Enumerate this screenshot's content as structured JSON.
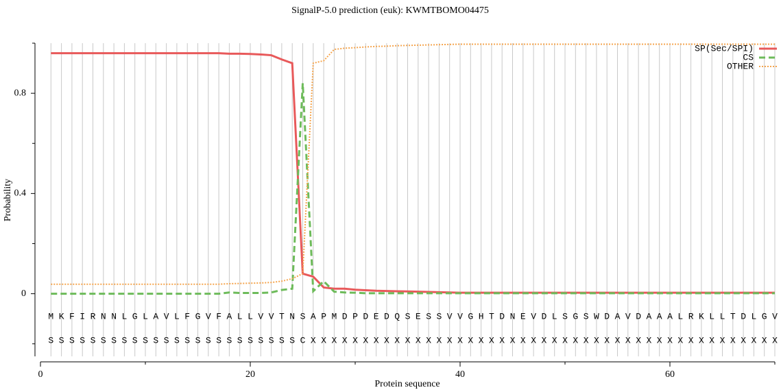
{
  "chart_data": {
    "type": "line",
    "title": "SignalP-5.0 prediction (euk):  KWMTBOMO04475",
    "xlabel": "Protein sequence",
    "ylabel": "Probability",
    "x": [
      1,
      2,
      3,
      4,
      5,
      6,
      7,
      8,
      9,
      10,
      11,
      12,
      13,
      14,
      15,
      16,
      17,
      18,
      19,
      20,
      21,
      22,
      23,
      24,
      25,
      26,
      27,
      28,
      29,
      30,
      31,
      32,
      33,
      34,
      35,
      36,
      37,
      38,
      39,
      40,
      41,
      42,
      43,
      44,
      45,
      46,
      47,
      48,
      49,
      50,
      51,
      52,
      53,
      54,
      55,
      56,
      57,
      58,
      59,
      60,
      61,
      62,
      63,
      64,
      65,
      66,
      67,
      68,
      69,
      70
    ],
    "xlim": [
      0,
      70
    ],
    "xticks": [
      0,
      20,
      40,
      60
    ],
    "xminor": [
      10,
      30,
      50,
      70
    ],
    "ylim": [
      -0.25,
      1.0
    ],
    "yticks": [
      0,
      0.4,
      0.8
    ],
    "yminor": [
      -0.2,
      0.2,
      0.6,
      1.0
    ],
    "grid": true,
    "legend": "upper right",
    "series": [
      {
        "name": "SP(Sec/SPI)",
        "color": "#e8595a",
        "dash": "solid",
        "values": [
          0.96,
          0.96,
          0.96,
          0.96,
          0.96,
          0.96,
          0.96,
          0.96,
          0.96,
          0.96,
          0.96,
          0.96,
          0.96,
          0.96,
          0.96,
          0.96,
          0.96,
          0.958,
          0.958,
          0.957,
          0.955,
          0.952,
          0.935,
          0.92,
          0.08,
          0.068,
          0.025,
          0.02,
          0.02,
          0.016,
          0.014,
          0.012,
          0.011,
          0.01,
          0.009,
          0.008,
          0.007,
          0.006,
          0.005,
          0.004,
          0.004,
          0.004,
          0.004,
          0.004,
          0.004,
          0.004,
          0.004,
          0.004,
          0.004,
          0.004,
          0.004,
          0.004,
          0.004,
          0.004,
          0.004,
          0.004,
          0.004,
          0.004,
          0.004,
          0.004,
          0.004,
          0.004,
          0.004,
          0.004,
          0.004,
          0.004,
          0.004,
          0.004,
          0.004,
          0.004
        ]
      },
      {
        "name": "CS",
        "color": "#6dbb5a",
        "dash": "dashed",
        "values": [
          0,
          0,
          0,
          0,
          0,
          0,
          0,
          0,
          0,
          0,
          0,
          0,
          0,
          0,
          0,
          0,
          0,
          0.005,
          0.003,
          0.003,
          0.003,
          0.005,
          0.015,
          0.02,
          0.84,
          0.01,
          0.05,
          0.008,
          0.005,
          0.004,
          0.002,
          0.002,
          0.002,
          0.002,
          0.002,
          0.002,
          0.002,
          0.002,
          0.002,
          0.002,
          0.002,
          0.002,
          0.002,
          0.002,
          0.002,
          0.002,
          0.002,
          0.002,
          0.002,
          0.002,
          0.002,
          0.002,
          0.002,
          0.002,
          0.002,
          0.002,
          0.002,
          0.002,
          0.002,
          0.002,
          0.002,
          0.002,
          0.002,
          0.002,
          0.002,
          0.002,
          0.002,
          0.002,
          0.002,
          0.002
        ]
      },
      {
        "name": "OTHER",
        "color": "#f5a44c",
        "dash": "dotted",
        "values": [
          0.038,
          0.038,
          0.038,
          0.038,
          0.038,
          0.038,
          0.038,
          0.038,
          0.038,
          0.038,
          0.038,
          0.038,
          0.038,
          0.038,
          0.038,
          0.038,
          0.038,
          0.04,
          0.041,
          0.042,
          0.043,
          0.045,
          0.05,
          0.06,
          0.08,
          0.92,
          0.93,
          0.975,
          0.98,
          0.982,
          0.985,
          0.987,
          0.988,
          0.99,
          0.991,
          0.992,
          0.993,
          0.994,
          0.995,
          0.996,
          0.996,
          0.996,
          0.996,
          0.996,
          0.996,
          0.996,
          0.996,
          0.996,
          0.996,
          0.996,
          0.996,
          0.996,
          0.996,
          0.996,
          0.996,
          0.996,
          0.996,
          0.996,
          0.996,
          0.996,
          0.996,
          0.996,
          0.996,
          0.996,
          0.996,
          0.996,
          0.996,
          0.996,
          0.996,
          0.996
        ]
      }
    ],
    "sequence": [
      "M",
      "K",
      "F",
      "I",
      "R",
      "N",
      "N",
      "L",
      "G",
      "L",
      "A",
      "V",
      "L",
      "F",
      "G",
      "V",
      "F",
      "A",
      "L",
      "L",
      "V",
      "V",
      "T",
      "N",
      "S",
      "A",
      "P",
      "M",
      "D",
      "P",
      "D",
      "E",
      "D",
      "Q",
      "S",
      "E",
      "S",
      "S",
      "V",
      "V",
      "G",
      "H",
      "T",
      "D",
      "N",
      "E",
      "V",
      "D",
      "L",
      "S",
      "G",
      "S",
      "W",
      "D",
      "A",
      "V",
      "D",
      "A",
      "A",
      "A",
      "L",
      "R",
      "K",
      "L",
      "L",
      "T",
      "D",
      "L",
      "G",
      "V"
    ],
    "annotation": [
      "S",
      "S",
      "S",
      "S",
      "S",
      "S",
      "S",
      "S",
      "S",
      "S",
      "S",
      "S",
      "S",
      "S",
      "S",
      "S",
      "S",
      "S",
      "S",
      "S",
      "S",
      "S",
      "S",
      "S",
      "C",
      "X",
      "X",
      "X",
      "X",
      "X",
      "X",
      "X",
      "X",
      "X",
      "X",
      "X",
      "X",
      "X",
      "X",
      "X",
      "X",
      "X",
      "X",
      "X",
      "X",
      "X",
      "X",
      "X",
      "X",
      "X",
      "X",
      "X",
      "X",
      "X",
      "X",
      "X",
      "X",
      "X",
      "X",
      "X",
      "X",
      "X",
      "X",
      "X",
      "X",
      "X",
      "X",
      "X",
      "X",
      "X"
    ]
  }
}
